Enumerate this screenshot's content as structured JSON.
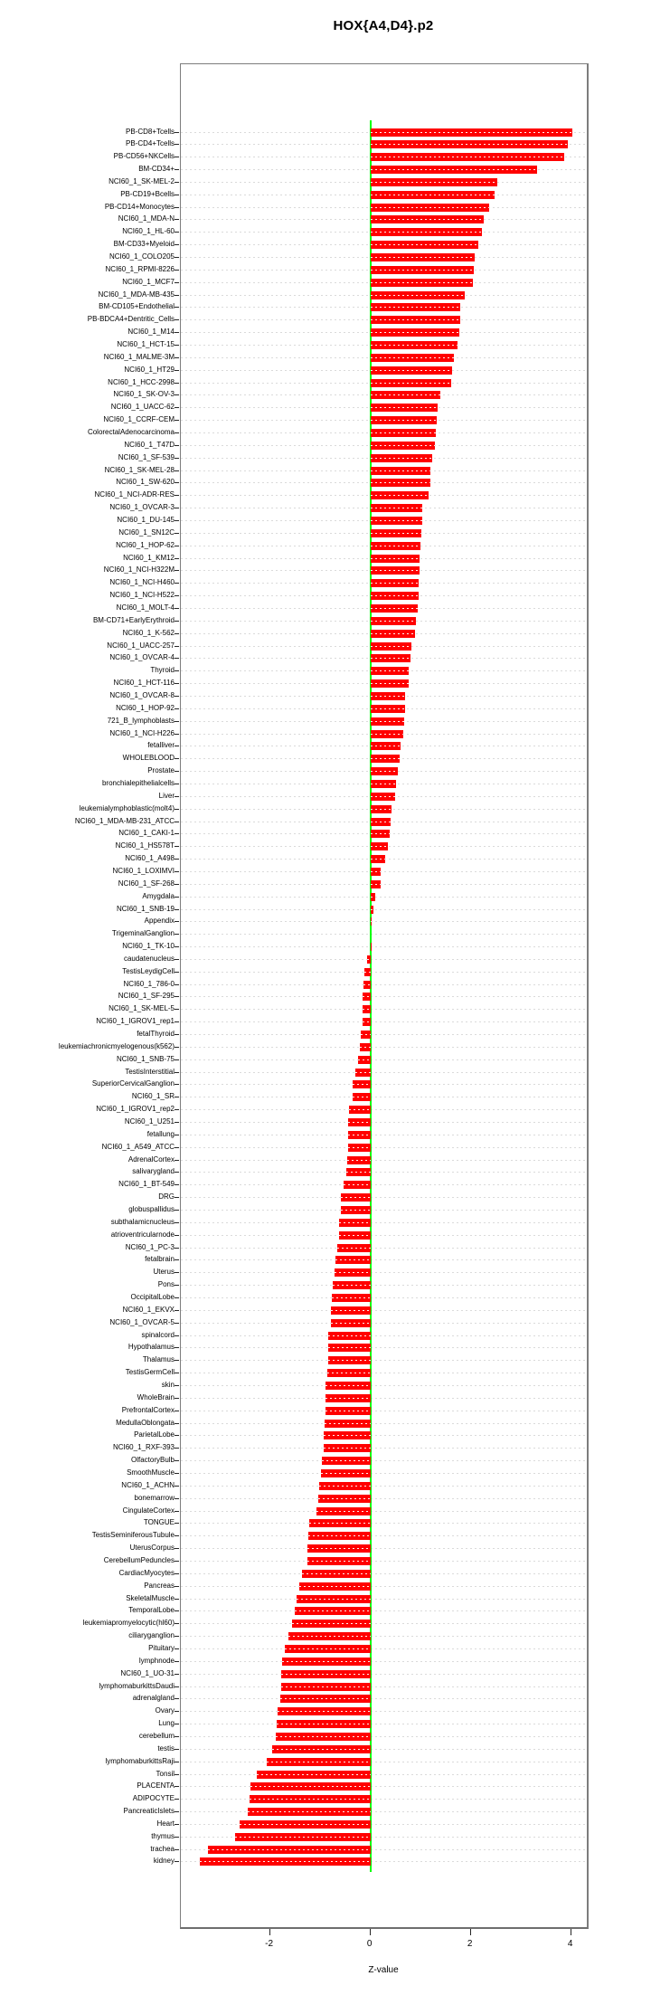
{
  "chart_data": {
    "type": "bar",
    "orientation": "horizontal",
    "title": "HOX{A4,D4}.p2",
    "xlabel": "Z-value",
    "x_ticks": [
      -2,
      0,
      2,
      4
    ],
    "xlim": [
      -3.77,
      4.33
    ],
    "bar_color": "#ff0000",
    "zero_line_color": "#00ff00",
    "grid": "dashed horizontal line per category",
    "legend": "none",
    "categories": [
      "PB-CD8+Tcells",
      "PB-CD4+Tcells",
      "PB-CD56+NKCells",
      "BM-CD34+",
      "NCI60_1_SK-MEL-2",
      "PB-CD19+Bcells",
      "PB-CD14+Monocytes",
      "NCI60_1_MDA-N",
      "NCI60_1_HL-60",
      "BM-CD33+Myeloid",
      "NCI60_1_COLO205",
      "NCI60_1_RPMI-8226",
      "NCI60_1_MCF7",
      "NCI60_1_MDA-MB-435",
      "BM-CD105+Endothelial",
      "PB-BDCA4+Dentritic_Cells",
      "NCI60_1_M14",
      "NCI60_1_HCT-15",
      "NCI60_1_MALME-3M",
      "NCI60_1_HT29",
      "NCI60_1_HCC-2998",
      "NCI60_1_SK-OV-3",
      "NCI60_1_UACC-62",
      "NCI60_1_CCRF-CEM",
      "ColorectalAdenocarcinoma",
      "NCI60_1_T47D",
      "NCI60_1_SF-539",
      "NCI60_1_SK-MEL-28",
      "NCI60_1_SW-620",
      "NCI60_1_NCI-ADR-RES",
      "NCI60_1_OVCAR-3",
      "NCI60_1_DU-145",
      "NCI60_1_SN12C",
      "NCI60_1_HOP-62",
      "NCI60_1_KM12",
      "NCI60_1_NCI-H322M",
      "NCI60_1_NCI-H460",
      "NCI60_1_NCI-H522",
      "NCI60_1_MOLT-4",
      "BM-CD71+EarlyErythroid",
      "NCI60_1_K-562",
      "NCI60_1_UACC-257",
      "NCI60_1_OVCAR-4",
      "Thyroid",
      "NCI60_1_HCT-116",
      "NCI60_1_OVCAR-8",
      "NCI60_1_HOP-92",
      "721_B_lymphoblasts",
      "NCI60_1_NCI-H226",
      "fetalliver",
      "WHOLEBLOOD",
      "Prostate",
      "bronchialepithelialcells",
      "Liver",
      "leukemialymphoblastic(molt4)",
      "NCI60_1_MDA-MB-231_ATCC",
      "NCI60_1_CAKI-1",
      "NCI60_1_HS578T",
      "NCI60_1_A498",
      "NCI60_1_LOXIMVI",
      "NCI60_1_SF-268",
      "Amygdala",
      "NCI60_1_SNB-19",
      "Appendix",
      "TrigeminalGanglion",
      "NCI60_1_TK-10",
      "caudatenucleus",
      "TestisLeydigCell",
      "NCI60_1_786-0",
      "NCI60_1_SF-295",
      "NCI60_1_SK-MEL-5",
      "NCI60_1_IGROV1_rep1",
      "fetalThyroid",
      "leukemiachronicmyelogenous(k562)",
      "NCI60_1_SNB-75",
      "TestisInterstitial",
      "SuperiorCervicalGanglion",
      "NCI60_1_SR",
      "NCI60_1_IGROV1_rep2",
      "NCI60_1_U251",
      "fetallung",
      "NCI60_1_A549_ATCC",
      "AdrenalCortex",
      "salivarygland",
      "NCI60_1_BT-549",
      "DRG",
      "globuspallidus",
      "subthalamicnucleus",
      "atrioventricularnode",
      "NCI60_1_PC-3",
      "fetalbrain",
      "Uterus",
      "Pons",
      "OccipitalLobe",
      "NCI60_1_EKVX",
      "NCI60_1_OVCAR-5",
      "spinalcord",
      "Hypothalamus",
      "Thalamus",
      "TestisGermCell",
      "skin",
      "WholeBrain",
      "PrefrontalCortex",
      "MedullaOblongata",
      "ParietalLobe",
      "NCI60_1_RXF-393",
      "OlfactoryBulb",
      "SmoothMuscle",
      "NCI60_1_ACHN",
      "bonemarrow",
      "CingulateCortex",
      "TONGUE",
      "TestisSeminiferousTubule",
      "UterusCorpus",
      "CerebellumPeduncles",
      "CardiacMyocytes",
      "Pancreas",
      "SkeletalMuscle",
      "TemporalLobe",
      "leukemiapromyelocytic(hl60)",
      "ciliaryganglion",
      "Pituitary",
      "lymphnode",
      "NCI60_1_UO-31",
      "lymphomaburkittsDaudi",
      "adrenalgland",
      "Ovary",
      "Lung",
      "cerebellum",
      "testis",
      "lymphomaburkittsRaji",
      "Tonsil",
      "PLACENTA",
      "ADIPOCYTE",
      "PancreaticIslets",
      "Heart",
      "thymus",
      "trachea",
      "kidney"
    ],
    "values": [
      4.02,
      3.93,
      3.85,
      3.32,
      2.52,
      2.46,
      2.36,
      2.25,
      2.22,
      2.15,
      2.07,
      2.06,
      2.04,
      1.87,
      1.79,
      1.78,
      1.76,
      1.72,
      1.65,
      1.62,
      1.6,
      1.38,
      1.34,
      1.31,
      1.3,
      1.27,
      1.23,
      1.19,
      1.18,
      1.16,
      1.03,
      1.02,
      1.01,
      0.99,
      0.98,
      0.97,
      0.96,
      0.95,
      0.94,
      0.9,
      0.89,
      0.81,
      0.8,
      0.76,
      0.75,
      0.69,
      0.68,
      0.66,
      0.64,
      0.6,
      0.57,
      0.54,
      0.5,
      0.48,
      0.41,
      0.39,
      0.37,
      0.34,
      0.28,
      0.2,
      0.19,
      0.08,
      0.05,
      0.01,
      0.0,
      -0.01,
      -0.07,
      -0.12,
      -0.14,
      -0.16,
      -0.16,
      -0.17,
      -0.2,
      -0.22,
      -0.25,
      -0.3,
      -0.36,
      -0.37,
      -0.44,
      -0.45,
      -0.45,
      -0.46,
      -0.47,
      -0.49,
      -0.55,
      -0.6,
      -0.6,
      -0.63,
      -0.64,
      -0.67,
      -0.71,
      -0.72,
      -0.75,
      -0.77,
      -0.79,
      -0.8,
      -0.84,
      -0.85,
      -0.85,
      -0.86,
      -0.9,
      -0.91,
      -0.91,
      -0.92,
      -0.93,
      -0.94,
      -0.97,
      -0.99,
      -1.02,
      -1.05,
      -1.09,
      -1.23,
      -1.24,
      -1.26,
      -1.27,
      -1.37,
      -1.43,
      -1.48,
      -1.52,
      -1.57,
      -1.64,
      -1.72,
      -1.77,
      -1.78,
      -1.79,
      -1.81,
      -1.85,
      -1.88,
      -1.89,
      -1.97,
      -2.07,
      -2.27,
      -2.4,
      -2.41,
      -2.45,
      -2.61,
      -2.7,
      -3.24,
      -3.4
    ]
  }
}
